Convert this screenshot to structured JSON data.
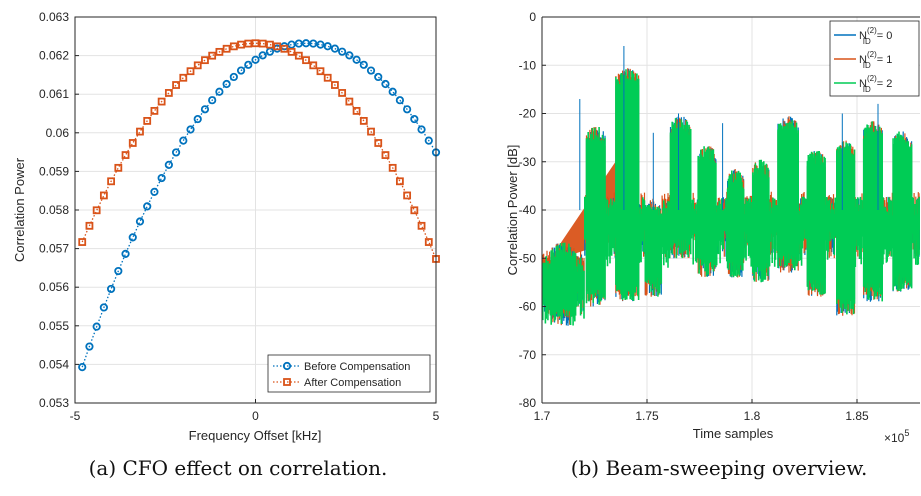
{
  "chart_data": [
    {
      "type": "line",
      "xlabel": "Frequency Offset [kHz]",
      "ylabel": "Correlation Power",
      "xlim": [
        -5,
        5
      ],
      "ylim": [
        0.053,
        0.063
      ],
      "xticks": [
        "-5",
        "0",
        "5"
      ],
      "yticks": [
        "0.053",
        "0.054",
        "0.055",
        "0.056",
        "0.057",
        "0.058",
        "0.059",
        "0.06",
        "0.061",
        "0.062",
        "0.063"
      ],
      "grid": true,
      "legend_position": "bottom-right",
      "caption": "(a) CFO effect on correlation.",
      "series": [
        {
          "name": "Before Compensation",
          "color": "#0072BD",
          "marker": "circle",
          "style": "dotted",
          "x_start": -4.8,
          "x_step": 0.2,
          "peak_x": 1.4,
          "peak_y": 0.06232,
          "edge_y": 0.05393
        },
        {
          "name": "After Compensation",
          "color": "#D95319",
          "marker": "square",
          "style": "dotted",
          "x_start": -4.8,
          "x_step": 0.2,
          "peak_x": 0.0,
          "peak_y": 0.06232,
          "edge_y": 0.05717
        }
      ]
    },
    {
      "type": "line",
      "xlabel": "Time samples",
      "ylabel": "Correlation Power [dB]",
      "xlim": [
        1.7,
        1.88
      ],
      "ylim": [
        -80,
        0
      ],
      "xticks": [
        "1.7",
        "1.75",
        "1.8",
        "1.85"
      ],
      "yticks": [
        "-80",
        "-70",
        "-60",
        "-50",
        "-40",
        "-30",
        "-20",
        "-10",
        "0"
      ],
      "x_multiplier": "×10",
      "x_multiplier_exp": "5",
      "grid": true,
      "legend_position": "top-right",
      "caption": "(b) Beam-sweeping overview.",
      "baseline_db": -40,
      "bursts": [
        {
          "start": 1.704,
          "end": 1.716,
          "top": -48,
          "bottom": -62
        },
        {
          "start": 1.721,
          "end": 1.73,
          "top": -24,
          "bottom": -58
        },
        {
          "start": 1.735,
          "end": 1.746,
          "top": -12,
          "bottom": -57
        },
        {
          "start": 1.749,
          "end": 1.757,
          "top": -39,
          "bottom": -56
        },
        {
          "start": 1.761,
          "end": 1.771,
          "top": -22,
          "bottom": -48
        },
        {
          "start": 1.774,
          "end": 1.783,
          "top": -28,
          "bottom": -52
        },
        {
          "start": 1.788,
          "end": 1.796,
          "top": -33,
          "bottom": -52
        },
        {
          "start": 1.8,
          "end": 1.808,
          "top": -31,
          "bottom": -53
        },
        {
          "start": 1.812,
          "end": 1.822,
          "top": -22,
          "bottom": -51
        },
        {
          "start": 1.826,
          "end": 1.835,
          "top": -29,
          "bottom": -56
        },
        {
          "start": 1.84,
          "end": 1.849,
          "top": -27,
          "bottom": -60
        },
        {
          "start": 1.853,
          "end": 1.862,
          "top": -23,
          "bottom": -57
        },
        {
          "start": 1.867,
          "end": 1.876,
          "top": -25,
          "bottom": -55
        }
      ],
      "spikes": [
        {
          "x": 1.718,
          "y": -17
        },
        {
          "x": 1.739,
          "y": -6
        },
        {
          "x": 1.753,
          "y": -24
        },
        {
          "x": 1.765,
          "y": -20
        },
        {
          "x": 1.786,
          "y": -22
        },
        {
          "x": 1.843,
          "y": -20
        },
        {
          "x": 1.86,
          "y": -18
        }
      ],
      "series": [
        {
          "name": "N_ID^(2) = 0",
          "label_main": "N",
          "label_sup": "(2)",
          "label_sub": "ID",
          "label_tail": " = 0",
          "color": "#0072BD"
        },
        {
          "name": "N_ID^(2) = 1",
          "label_main": "N",
          "label_sup": "(2)",
          "label_sub": "ID",
          "label_tail": " = 1",
          "color": "#D95319"
        },
        {
          "name": "N_ID^(2) = 2",
          "label_main": "N",
          "label_sup": "(2)",
          "label_sub": "ID",
          "label_tail": " = 2",
          "color": "#00CC55"
        }
      ]
    }
  ]
}
